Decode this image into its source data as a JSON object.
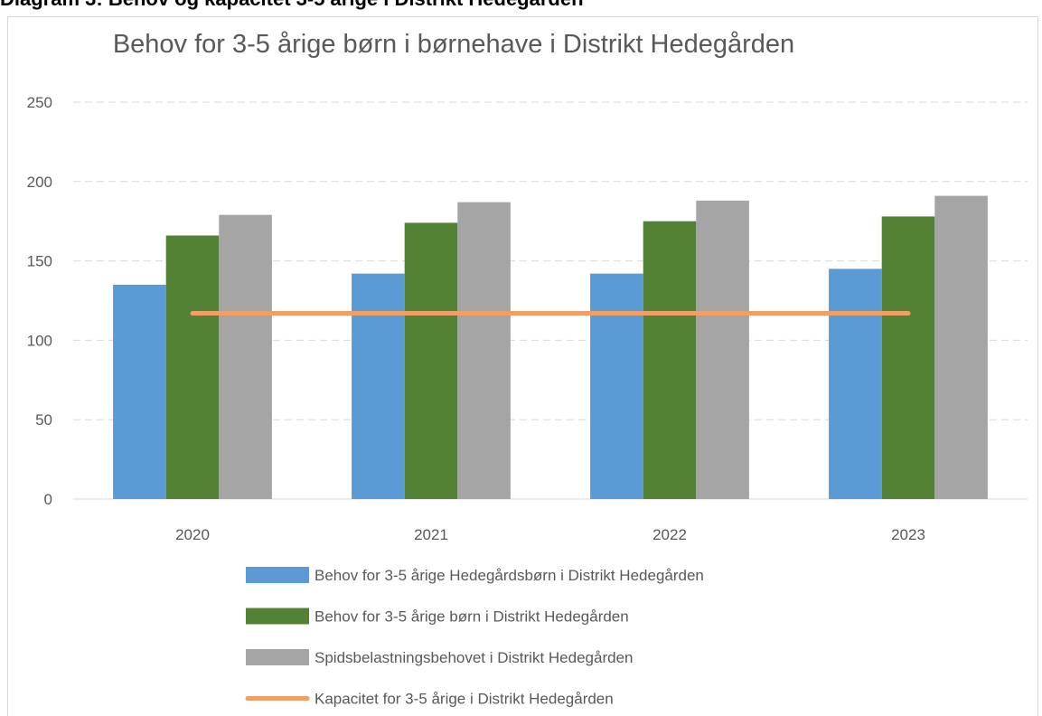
{
  "heading": "Diagram 3: Behov og kapacitet 3-5 årige i Distrikt Hedegården",
  "chart_data": {
    "type": "bar",
    "title": "Behov for 3-5 årige børn i børnehave i Distrikt Hedegården",
    "categories": [
      "2020",
      "2021",
      "2022",
      "2023"
    ],
    "series": [
      {
        "name": "Behov for 3-5 årige Hedegårdsbørn i Distrikt Hedegården",
        "color": "#5b9bd5",
        "values": [
          135,
          142,
          142,
          145
        ]
      },
      {
        "name": "Behov for 3-5 årige børn i Distrikt Hedegården",
        "color": "#548235",
        "values": [
          166,
          174,
          175,
          178
        ]
      },
      {
        "name": "Spidsbelastningsbehovet i Distrikt Hedegården",
        "color": "#a5a5a5",
        "values": [
          179,
          187,
          188,
          191
        ]
      },
      {
        "name": "Kapacitet for 3-5 årige i Distrikt Hedegården",
        "color": "#f0a066",
        "type": "line",
        "values": [
          117,
          117,
          117,
          117
        ]
      }
    ],
    "ylim": [
      0,
      250
    ],
    "yticks": [
      0,
      50,
      100,
      150,
      200,
      250
    ],
    "grid": true,
    "legend": "bottom"
  }
}
